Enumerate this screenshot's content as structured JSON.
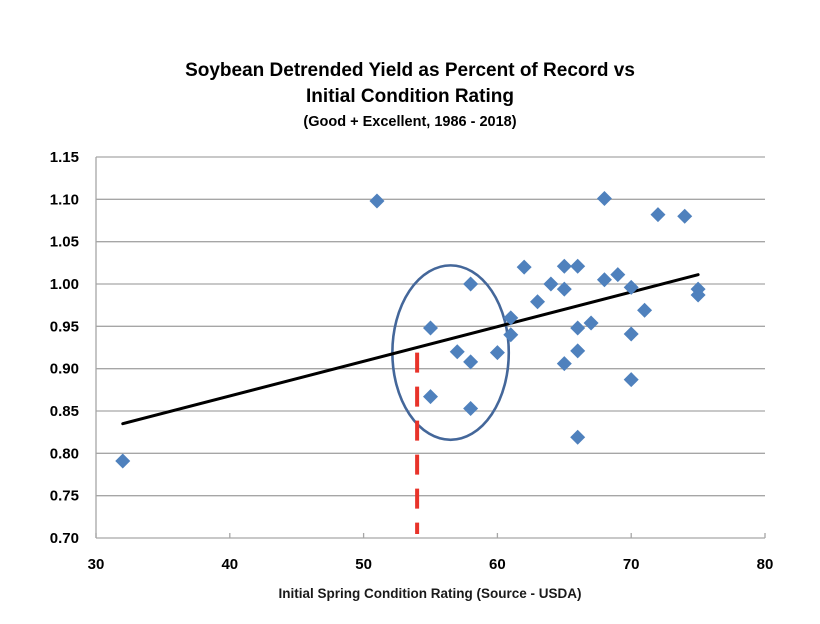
{
  "chart_data": {
    "type": "scatter",
    "title_lines": [
      "Soybean Detrended Yield as Percent of Record vs",
      "Initial Condition Rating"
    ],
    "subtitle": "(Good + Excellent, 1986 - 2018)",
    "xlabel": "Initial Spring Condition Rating (Source - USDA)",
    "ylabel": "",
    "xlim": [
      30,
      80
    ],
    "ylim": [
      0.7,
      1.15
    ],
    "xticks": [
      30,
      40,
      50,
      60,
      70,
      80
    ],
    "xtick_labels": [
      "30",
      "40",
      "50",
      "60",
      "70",
      "80"
    ],
    "yticks": [
      0.7,
      0.75,
      0.8,
      0.85,
      0.9,
      0.95,
      1.0,
      1.05,
      1.1,
      1.15
    ],
    "ytick_labels": [
      "0.70",
      "0.75",
      "0.80",
      "0.85",
      "0.90",
      "0.95",
      "1.00",
      "1.05",
      "1.10",
      "1.15"
    ],
    "grid": "horizontal",
    "legend": "none",
    "series": [
      {
        "name": "Detrended yield",
        "marker": "diamond",
        "color": "#4F81BD",
        "points": [
          {
            "x": 32,
            "y": 0.791
          },
          {
            "x": 51,
            "y": 1.098
          },
          {
            "x": 55,
            "y": 0.948
          },
          {
            "x": 55,
            "y": 0.867
          },
          {
            "x": 57,
            "y": 0.92
          },
          {
            "x": 58,
            "y": 1.0
          },
          {
            "x": 58,
            "y": 0.908
          },
          {
            "x": 58,
            "y": 0.853
          },
          {
            "x": 60,
            "y": 0.919
          },
          {
            "x": 61,
            "y": 0.96
          },
          {
            "x": 61,
            "y": 0.94
          },
          {
            "x": 62,
            "y": 1.02
          },
          {
            "x": 63,
            "y": 0.979
          },
          {
            "x": 64,
            "y": 1.0
          },
          {
            "x": 65,
            "y": 1.021
          },
          {
            "x": 65,
            "y": 0.994
          },
          {
            "x": 65,
            "y": 0.906
          },
          {
            "x": 66,
            "y": 1.021
          },
          {
            "x": 66,
            "y": 0.948
          },
          {
            "x": 66,
            "y": 0.921
          },
          {
            "x": 66,
            "y": 0.819
          },
          {
            "x": 67,
            "y": 0.954
          },
          {
            "x": 68,
            "y": 1.101
          },
          {
            "x": 68,
            "y": 1.005
          },
          {
            "x": 69,
            "y": 1.011
          },
          {
            "x": 70,
            "y": 0.996
          },
          {
            "x": 70,
            "y": 0.941
          },
          {
            "x": 70,
            "y": 0.887
          },
          {
            "x": 71,
            "y": 0.969
          },
          {
            "x": 72,
            "y": 1.082
          },
          {
            "x": 74,
            "y": 1.08
          },
          {
            "x": 75,
            "y": 0.994
          },
          {
            "x": 75,
            "y": 0.987
          }
        ]
      }
    ],
    "trendline": {
      "name": "Linear trend",
      "color": "#000000",
      "start": {
        "x": 32,
        "y": 0.835
      },
      "end": {
        "x": 75,
        "y": 1.011
      }
    },
    "annotations": [
      {
        "type": "ellipse",
        "name": "highlight-cluster",
        "color": "#44679A",
        "center": {
          "x": 56.5,
          "y": 0.919
        },
        "radius_x": 4.35,
        "radius_y": 0.103
      },
      {
        "type": "dashed-vertical-line",
        "name": "current-rating-marker",
        "color": "#E8332A",
        "x": 54,
        "y_from": 0.919,
        "y_to": 0.7
      }
    ]
  }
}
